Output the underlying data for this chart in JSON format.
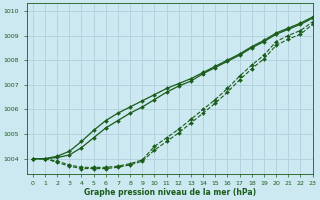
{
  "background_color": "#cce8f0",
  "grid_color": "#b0d0dc",
  "line_color": "#1a5c1a",
  "title": "Graphe pression niveau de la mer (hPa)",
  "xlim": [
    -0.5,
    23
  ],
  "ylim": [
    1003.4,
    1010.3
  ],
  "yticks": [
    1004,
    1005,
    1006,
    1007,
    1008,
    1009,
    1010
  ],
  "xticks": [
    0,
    1,
    2,
    3,
    4,
    5,
    6,
    7,
    8,
    9,
    10,
    11,
    12,
    13,
    14,
    15,
    16,
    17,
    18,
    19,
    20,
    21,
    22,
    23
  ],
  "series": [
    {
      "y": [
        1004.0,
        1004.0,
        1003.9,
        1003.75,
        1003.65,
        1003.65,
        1003.65,
        1003.7,
        1003.8,
        1003.95,
        1004.5,
        1004.85,
        1005.2,
        1005.6,
        1006.0,
        1006.4,
        1006.85,
        1007.35,
        1007.8,
        1008.2,
        1008.75,
        1009.0,
        1009.2,
        1009.55
      ],
      "linestyle": "--",
      "linewidth": 0.8,
      "marker": true,
      "markersize": 2.0
    },
    {
      "y": [
        1004.0,
        1004.0,
        1003.85,
        1003.7,
        1003.6,
        1003.6,
        1003.6,
        1003.65,
        1003.75,
        1003.9,
        1004.35,
        1004.7,
        1005.05,
        1005.45,
        1005.85,
        1006.25,
        1006.7,
        1007.2,
        1007.65,
        1008.05,
        1008.6,
        1008.85,
        1009.05,
        1009.45
      ],
      "linestyle": "--",
      "linewidth": 0.8,
      "marker": true,
      "markersize": 2.0
    },
    {
      "y": [
        1004.0,
        1004.0,
        1004.05,
        1004.15,
        1004.45,
        1004.85,
        1005.25,
        1005.55,
        1005.85,
        1006.1,
        1006.4,
        1006.7,
        1006.95,
        1007.15,
        1007.45,
        1007.7,
        1007.95,
        1008.2,
        1008.5,
        1008.75,
        1009.05,
        1009.25,
        1009.45,
        1009.7
      ],
      "linestyle": "-",
      "linewidth": 0.9,
      "marker": true,
      "markersize": 2.0
    },
    {
      "y": [
        1004.0,
        1004.0,
        1004.1,
        1004.3,
        1004.7,
        1005.15,
        1005.55,
        1005.85,
        1006.1,
        1006.35,
        1006.6,
        1006.85,
        1007.05,
        1007.25,
        1007.5,
        1007.75,
        1008.0,
        1008.25,
        1008.55,
        1008.8,
        1009.1,
        1009.3,
        1009.5,
        1009.75
      ],
      "linestyle": "-",
      "linewidth": 0.9,
      "marker": true,
      "markersize": 2.0
    }
  ]
}
